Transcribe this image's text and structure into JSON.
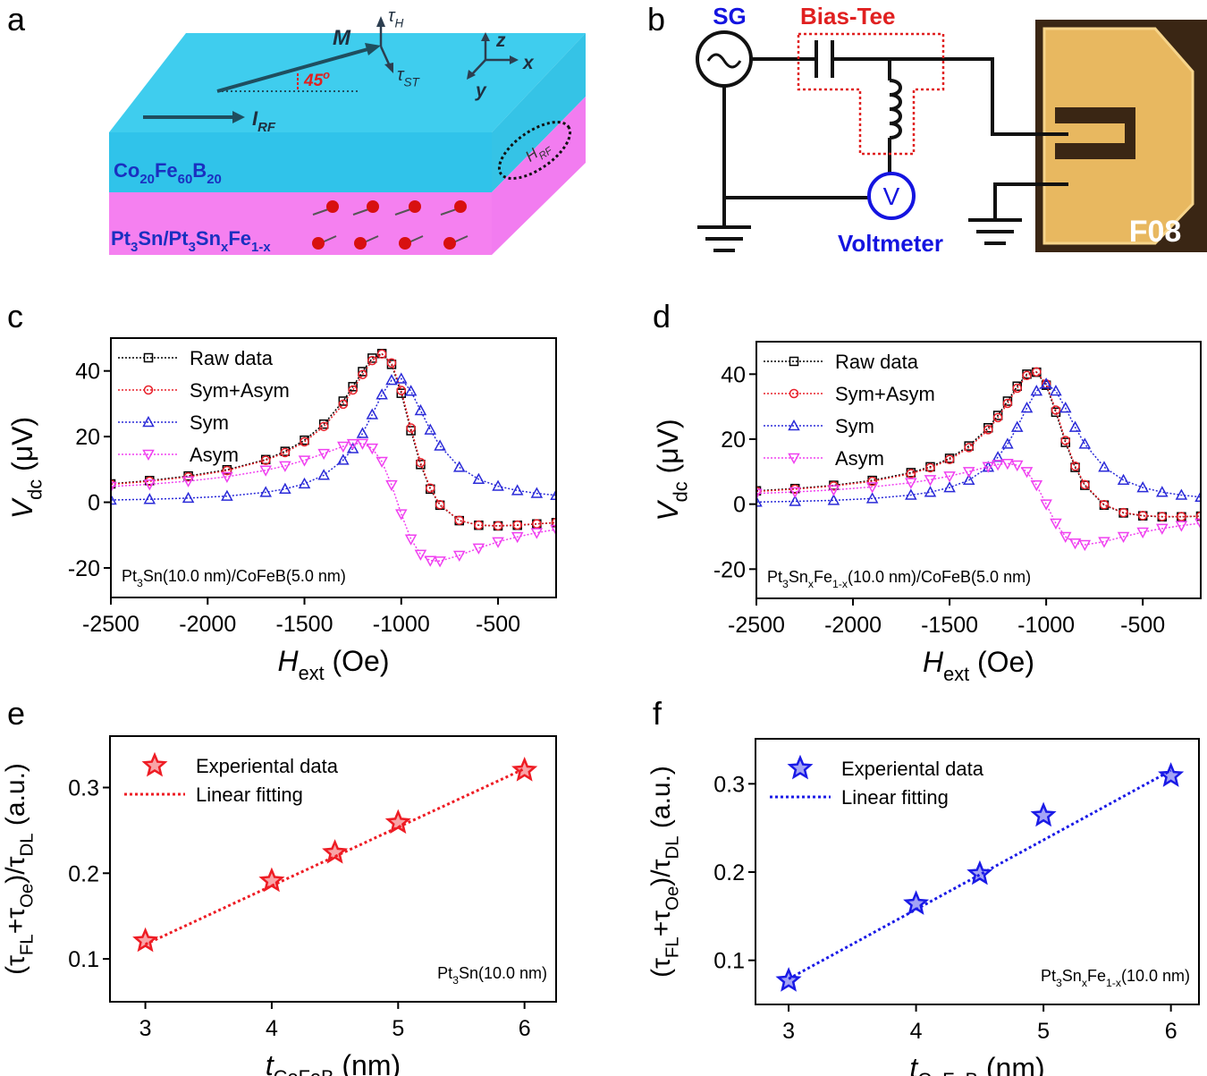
{
  "panel_labels": [
    "a",
    "b",
    "c",
    "d",
    "e",
    "f"
  ],
  "diagram_a": {
    "magnetization": "M",
    "tau_h": [
      "τ",
      {
        "sub": "H"
      }
    ],
    "tau_st": [
      "τ",
      {
        "sub": "ST"
      }
    ],
    "angle": [
      "45",
      {
        "sup": "o"
      }
    ],
    "axis_z": "z",
    "axis_x": "x",
    "axis_y": "y",
    "current": [
      "I",
      {
        "sub": "RF"
      }
    ],
    "field": [
      "H",
      {
        "sub": "RF"
      }
    ],
    "top_layer": [
      "Co",
      {
        "sub": "20"
      },
      "Fe",
      {
        "sub": "60"
      },
      "B",
      {
        "sub": "20"
      }
    ],
    "bottom_layer": [
      "Pt",
      {
        "sub": "3"
      },
      "Sn/Pt",
      {
        "sub": "3"
      },
      "Sn",
      {
        "sub": "x"
      },
      "Fe",
      {
        "sub": "1-x"
      }
    ]
  },
  "diagram_b": {
    "source": "SG",
    "bias_tee": "Bias-Tee",
    "meter_symbol": "V",
    "meter": "Voltmeter",
    "device": "F08"
  },
  "chart_data": [
    {
      "type": "line",
      "x": [
        -2500,
        -2300,
        -2100,
        -1900,
        -1700,
        -1600,
        -1500,
        -1400,
        -1300,
        -1250,
        -1200,
        -1150,
        -1100,
        -1050,
        -1000,
        -950,
        -900,
        -850,
        -800,
        -700,
        -600,
        -500,
        -400,
        -300,
        -200
      ],
      "xlim": [
        -2500,
        -200
      ],
      "xticks": [
        -2500,
        -2000,
        -1500,
        -1000,
        -500
      ],
      "ylim": [
        -29,
        50
      ],
      "yticks": [
        -20,
        0,
        20,
        40
      ],
      "xlabel": [
        "H",
        {
          "sub": "ext"
        },
        " (Oe)"
      ],
      "ylabel": [
        "V",
        {
          "sub": "dc"
        },
        " (μV)"
      ],
      "legend": "upper left",
      "annotation": [
        "Pt",
        {
          "sub": "3"
        },
        "Sn(10.0 nm)/CoFeB(5.0 nm)"
      ],
      "annotation_corner": "lower left",
      "series": [
        {
          "name": "Raw data",
          "color": "#000000",
          "marker": "square",
          "line": "dotted",
          "values": [
            5.6,
            6.6,
            8.0,
            9.9,
            13.0,
            15.5,
            18.9,
            23.8,
            30.8,
            35.2,
            39.8,
            43.9,
            45.3,
            42.0,
            33.2,
            21.8,
            11.5,
            4.0,
            -0.9,
            -5.6,
            -7.0,
            -7.2,
            -7.0,
            -6.6,
            -6.2
          ]
        },
        {
          "name": "Sym+Asym",
          "color": "#e8202a",
          "marker": "circle",
          "line": "dotted",
          "values": [
            5.46,
            6.4,
            7.71,
            9.65,
            12.78,
            15.13,
            18.4,
            23.08,
            29.87,
            34.19,
            38.89,
            43.16,
            45.17,
            42.44,
            34.06,
            22.63,
            12.06,
            4.3,
            -0.73,
            -5.51,
            -6.95,
            -7.16,
            -6.94,
            -6.56,
            -6.16
          ]
        },
        {
          "name": "Sym",
          "color": "#2a2ad8",
          "marker": "triangle-up",
          "line": "dotted",
          "values": [
            0.68,
            0.91,
            1.26,
            1.87,
            3.03,
            4.04,
            5.62,
            8.24,
            12.84,
            16.36,
            20.99,
            26.71,
            32.76,
            37.16,
            37.62,
            33.85,
            27.94,
            22.06,
            17.19,
            10.67,
            7.02,
            4.9,
            3.58,
            2.72,
            2.13
          ]
        },
        {
          "name": "Asym",
          "color": "#f040f0",
          "marker": "triangle-down",
          "line": "dotted",
          "values": [
            4.78,
            5.49,
            6.45,
            7.78,
            9.75,
            11.09,
            12.78,
            14.84,
            17.03,
            17.83,
            17.9,
            16.45,
            12.41,
            5.28,
            -3.56,
            -11.22,
            -15.88,
            -17.76,
            -17.92,
            -16.18,
            -13.97,
            -12.06,
            -10.52,
            -9.28,
            -8.29
          ]
        }
      ]
    },
    {
      "type": "line",
      "x": [
        -2500,
        -2300,
        -2100,
        -1900,
        -1700,
        -1600,
        -1500,
        -1400,
        -1300,
        -1250,
        -1200,
        -1150,
        -1100,
        -1050,
        -1000,
        -950,
        -900,
        -850,
        -800,
        -700,
        -600,
        -500,
        -400,
        -300,
        -200
      ],
      "xlim": [
        -2500,
        -200
      ],
      "xticks": [
        -2500,
        -2000,
        -1500,
        -1000,
        -500
      ],
      "ylim": [
        -29,
        50
      ],
      "yticks": [
        -20,
        0,
        20,
        40
      ],
      "xlabel": [
        "H",
        {
          "sub": "ext"
        },
        " (Oe)"
      ],
      "ylabel": [
        "V",
        {
          "sub": "dc"
        },
        " (μV)"
      ],
      "legend": "upper left",
      "annotation": [
        "Pt",
        {
          "sub": "3"
        },
        "Sn",
        {
          "sub": "x"
        },
        "Fe",
        {
          "sub": "1-x"
        },
        "(10.0 nm)/CoFeB(5.0 nm)"
      ],
      "annotation_corner": "lower left",
      "series": [
        {
          "name": "Raw data",
          "color": "#000000",
          "marker": "square",
          "line": "dotted",
          "values": [
            4.1,
            4.8,
            5.8,
            7.3,
            9.7,
            11.5,
            14.1,
            17.9,
            23.5,
            27.3,
            31.7,
            36.3,
            40.0,
            40.6,
            36.6,
            28.3,
            19.0,
            11.3,
            5.8,
            -0.3,
            -2.7,
            -3.6,
            -3.9,
            -3.9,
            -3.7
          ]
        },
        {
          "name": "Sym+Asym",
          "color": "#e8202a",
          "marker": "circle",
          "line": "dotted",
          "values": [
            3.93,
            4.62,
            5.58,
            7.03,
            9.39,
            11.2,
            13.72,
            17.4,
            22.92,
            26.64,
            31.0,
            35.68,
            39.6,
            40.7,
            37.0,
            28.94,
            19.6,
            11.68,
            6.0,
            -0.16,
            -2.6,
            -3.52,
            -3.8,
            -3.81,
            -3.7
          ]
        },
        {
          "name": "Sym",
          "color": "#2a2ad8",
          "marker": "triangle-up",
          "line": "dotted",
          "values": [
            0.65,
            0.86,
            1.18,
            1.74,
            2.79,
            3.7,
            5.1,
            7.4,
            11.38,
            14.44,
            18.5,
            23.68,
            29.6,
            34.82,
            37.0,
            34.82,
            29.6,
            23.68,
            18.5,
            11.38,
            7.4,
            5.1,
            3.7,
            2.79,
            2.18
          ]
        },
        {
          "name": "Asym",
          "color": "#f040f0",
          "marker": "triangle-down",
          "line": "dotted",
          "values": [
            3.28,
            3.76,
            4.4,
            5.29,
            6.6,
            7.5,
            8.62,
            10.0,
            11.54,
            12.2,
            12.5,
            12.0,
            10.0,
            5.88,
            0,
            -5.88,
            -10.0,
            -12.0,
            -12.5,
            -11.54,
            -10.0,
            -8.62,
            -7.5,
            -6.6,
            -5.88
          ]
        }
      ]
    },
    {
      "type": "scatter",
      "xlim": [
        2.72,
        6.25
      ],
      "xticks": [
        3,
        4,
        5,
        6
      ],
      "ylim": [
        0.05,
        0.36
      ],
      "yticks": [
        0.1,
        0.2,
        0.3
      ],
      "xlabel": [
        "t",
        {
          "sub": "CoFeB"
        },
        " (nm)"
      ],
      "ylabel": [
        "(τ",
        {
          "sub": "FL"
        },
        "+τ",
        {
          "sub": "Oe"
        },
        ")/τ",
        {
          "sub": "DL"
        },
        " (a.u.)"
      ],
      "legend": "upper left",
      "annotation": [
        "Pt",
        {
          "sub": "3"
        },
        "Sn(10.0 nm)"
      ],
      "annotation_corner": "lower right",
      "series": [
        {
          "name": "Experiental data",
          "color": "#ee1c24",
          "marker": "star",
          "x": [
            3,
            4,
            4.5,
            5,
            6
          ],
          "values": [
            0.121,
            0.191,
            0.224,
            0.259,
            0.32
          ]
        },
        {
          "name": "Linear fitting",
          "color": "#ee1c24",
          "line": "dotted",
          "x": [
            3,
            6
          ],
          "values": [
            0.117,
            0.322
          ]
        }
      ]
    },
    {
      "type": "scatter",
      "xlim": [
        2.74,
        6.22
      ],
      "xticks": [
        3,
        4,
        5,
        6
      ],
      "ylim": [
        0.05,
        0.351
      ],
      "yticks": [
        0.1,
        0.2,
        0.3
      ],
      "xlabel": [
        "t",
        {
          "sub": "CoFeB"
        },
        " (nm)"
      ],
      "ylabel": [
        "(τ",
        {
          "sub": "FL"
        },
        "+τ",
        {
          "sub": "Oe"
        },
        ")/τ",
        {
          "sub": "DL"
        },
        " (a.u.)"
      ],
      "legend": "upper left",
      "annotation": [
        "Pt",
        {
          "sub": "3"
        },
        "Sn",
        {
          "sub": "x"
        },
        "Fe",
        {
          "sub": "1-x"
        },
        "(10.0 nm)"
      ],
      "annotation_corner": "lower right",
      "series": [
        {
          "name": "Experiental data",
          "color": "#1a1ae6",
          "marker": "star",
          "x": [
            3,
            4,
            4.5,
            5,
            6
          ],
          "values": [
            0.077,
            0.164,
            0.198,
            0.264,
            0.309
          ]
        },
        {
          "name": "Linear fitting",
          "color": "#1a1ae6",
          "line": "dotted",
          "x": [
            3,
            6
          ],
          "values": [
            0.079,
            0.315
          ]
        }
      ]
    }
  ]
}
